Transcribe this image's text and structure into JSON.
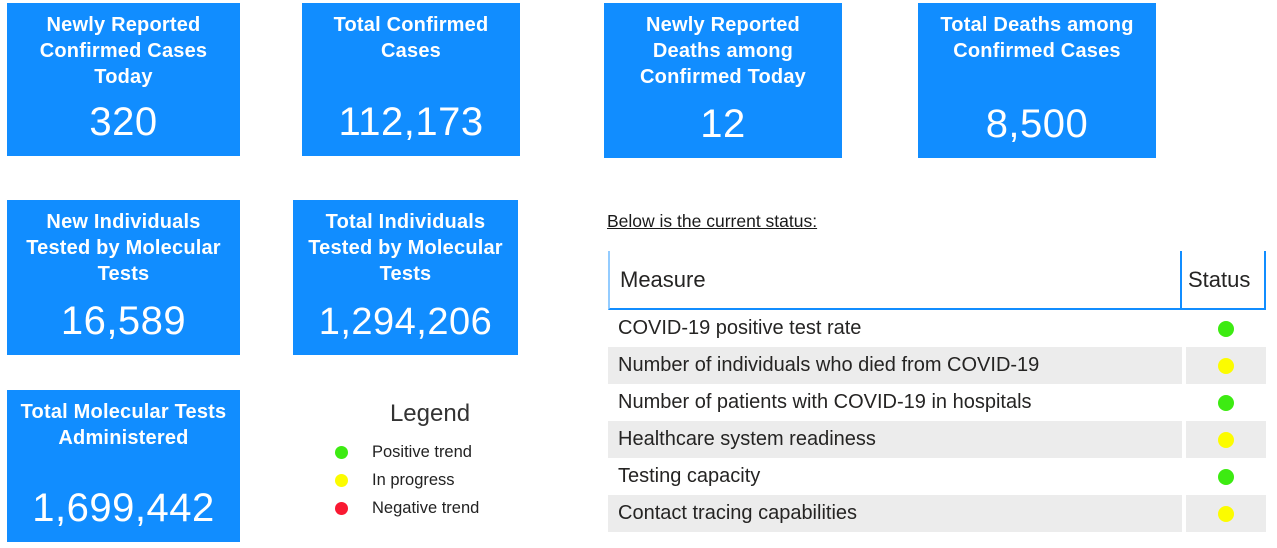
{
  "colors": {
    "card_bg": "#118DFF",
    "card_text": "#FFFFFF",
    "accent_blue": "#118DFF",
    "row_alt_bg": "#ECECEC",
    "table_text": "#252423",
    "green": "#3DEB12",
    "yellow": "#FCFC00",
    "red": "#F91932"
  },
  "cards": [
    {
      "title": "Newly Reported Confirmed Cases Today",
      "value": "320"
    },
    {
      "title": "Total Confirmed Cases",
      "value": "112,173"
    },
    {
      "title": "Newly Reported Deaths among Confirmed Today",
      "value": "12"
    },
    {
      "title": "Total Deaths among Confirmed Cases",
      "value": "8,500"
    },
    {
      "title": "New Individuals Tested by Molecular Tests",
      "value": "16,589"
    },
    {
      "title": "Total Individuals Tested by Molecular Tests",
      "value": "1,294,206"
    },
    {
      "title": "Total Molecular Tests Administered",
      "value": "1,699,442"
    }
  ],
  "legend": {
    "title": "Legend",
    "items": [
      {
        "label": "Positive trend",
        "color": "green"
      },
      {
        "label": "In progress",
        "color": "yellow"
      },
      {
        "label": "Negative trend",
        "color": "red"
      }
    ]
  },
  "status_section": {
    "heading": "Below is the current status:",
    "table": {
      "columns": [
        "Measure",
        "Status"
      ],
      "rows": [
        {
          "measure": "COVID-19 positive test rate",
          "status": "green"
        },
        {
          "measure": "Number of individuals who died from COVID-19",
          "status": "yellow"
        },
        {
          "measure": "Number of patients with COVID-19 in hospitals",
          "status": "green"
        },
        {
          "measure": "Healthcare system readiness",
          "status": "yellow"
        },
        {
          "measure": "Testing capacity",
          "status": "green"
        },
        {
          "measure": "Contact tracing capabilities",
          "status": "yellow"
        }
      ]
    }
  }
}
